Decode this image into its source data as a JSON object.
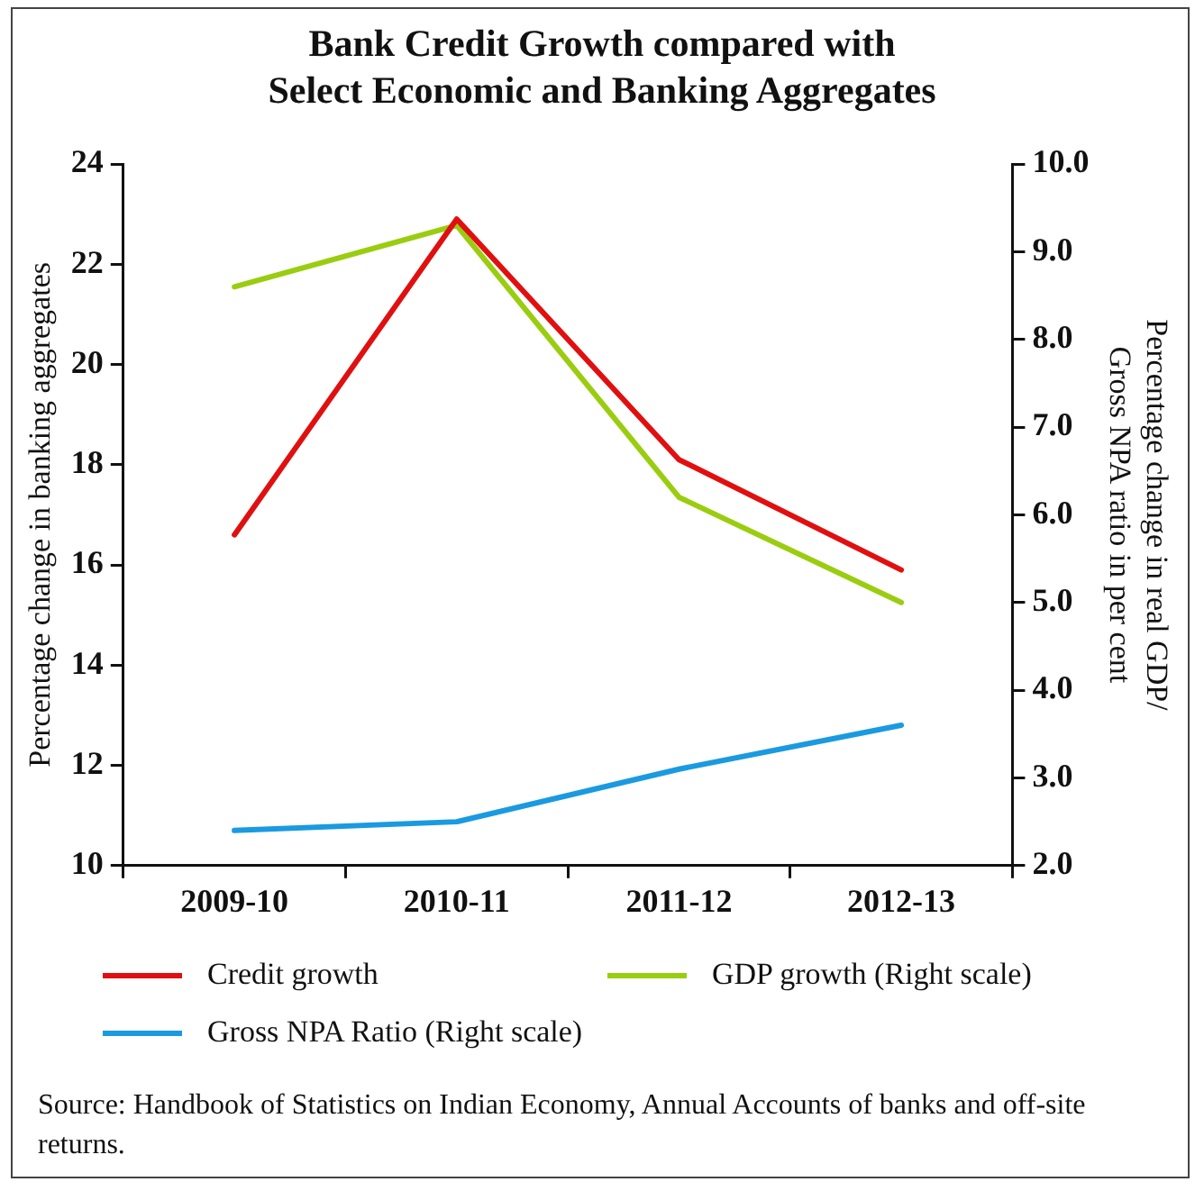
{
  "chart_data": {
    "type": "line",
    "title": "Bank Credit Growth compared with\nSelect Economic and Banking Aggregates",
    "ylabel": "Percentage change in banking aggregates",
    "y2label": "Percentage change in real GDP/\nGross NPA ratio in per cent",
    "categories": [
      "2009-10",
      "2010-11",
      "2011-12",
      "2012-13"
    ],
    "series": [
      {
        "name": "Credit growth",
        "color": "#e01010",
        "values": [
          16.6,
          22.9,
          18.1,
          15.9
        ]
      },
      {
        "name": "GDP growth (Right scale)",
        "color": "#9acd10",
        "axis": "y2",
        "values": [
          8.6,
          9.3,
          6.2,
          5.0
        ]
      },
      {
        "name": "Gross NPA Ratio (Right scale)",
        "color": "#1a9ae0",
        "axis": "y2",
        "values": [
          2.4,
          2.5,
          3.1,
          3.6
        ]
      }
    ],
    "ylim": [
      10,
      24
    ],
    "yticks": [
      10,
      12,
      14,
      16,
      18,
      20,
      22,
      24
    ],
    "y2lim": [
      2,
      10
    ],
    "y2ticks": [
      {
        "value": 2,
        "label": "2.0"
      },
      {
        "value": 3,
        "label": "3.0"
      },
      {
        "value": 4,
        "label": "4.0"
      },
      {
        "value": 5,
        "label": "5.0"
      },
      {
        "value": 6,
        "label": "6.0"
      },
      {
        "value": 7,
        "label": "7.0"
      },
      {
        "value": 8,
        "label": "8.0"
      },
      {
        "value": 9,
        "label": "9.0"
      },
      {
        "value": 10,
        "label": "10.0"
      }
    ],
    "grid": false,
    "legend": "bottom",
    "marker": "none",
    "line_style": "solid",
    "annotations": [
      "Source: Handbook of Statistics on Indian Economy, Annual Accounts of banks and off-site returns."
    ]
  }
}
